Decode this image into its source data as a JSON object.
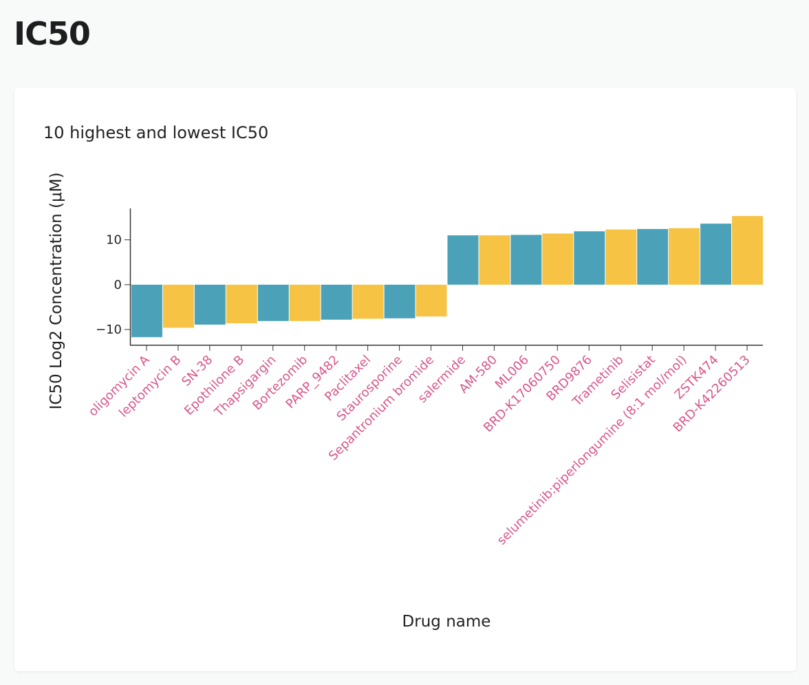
{
  "page": {
    "title": "IC50"
  },
  "chart_data": {
    "type": "bar",
    "title": "10 highest and lowest IC50",
    "xlabel": "Drug name",
    "ylabel": "IC50 Log2 Concentration (μM)",
    "ylim": [
      -13.5,
      17
    ],
    "yticks": [
      -10,
      0,
      10
    ],
    "ytick_labels": [
      "−10",
      "0",
      "10"
    ],
    "colors": [
      "#4ba2b8",
      "#f6c344"
    ],
    "categories": [
      "oligomycin A",
      "leptomycin B",
      "SN-38",
      "Epothilone B",
      "Thapsigargin",
      "Bortezomib",
      "PARP_9482",
      "Paclitaxel",
      "Staurosporine",
      "Sepantronium bromide",
      "salermide",
      "AM-580",
      "ML006",
      "BRD-K17060750",
      "BRD9876",
      "Trametinib",
      "Selisistat",
      "selumetinib:piperlongumine (8:1 mol/mol)",
      "ZSTK474",
      "BRD-K42260513"
    ],
    "values": [
      -11.7,
      -9.6,
      -8.9,
      -8.6,
      -8.1,
      -8.1,
      -7.8,
      -7.6,
      -7.5,
      -7.1,
      11.0,
      11.0,
      11.1,
      11.4,
      11.9,
      12.3,
      12.4,
      12.6,
      13.6,
      15.3
    ]
  }
}
